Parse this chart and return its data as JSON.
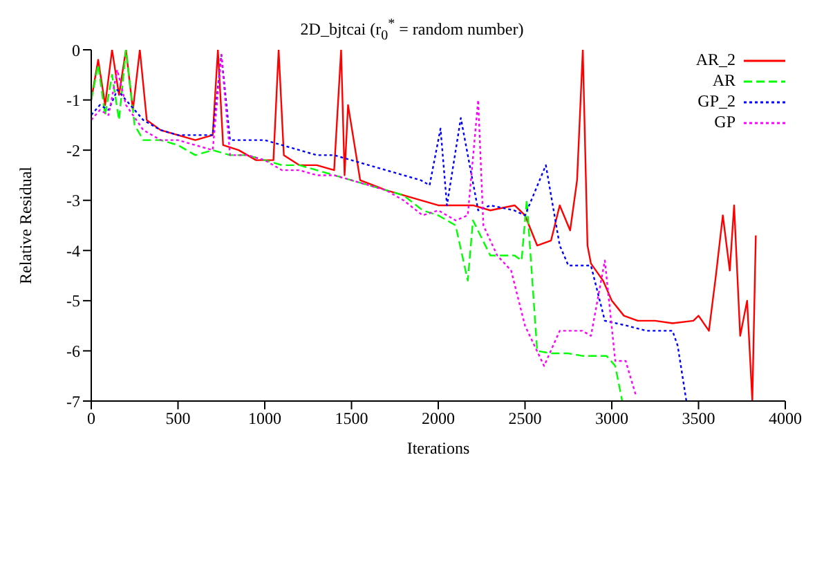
{
  "chart_data": {
    "type": "line",
    "title": "2D_bjtcai (r$_{0}$$^{*}$ = random number)",
    "xlabel": "Iterations",
    "ylabel": "Relative Residual",
    "xlim": [
      0,
      4000
    ],
    "ylim": [
      -7,
      0
    ],
    "xticks": [
      0,
      500,
      1000,
      1500,
      2000,
      2500,
      3000,
      3500,
      4000
    ],
    "yticks": [
      -7,
      -6,
      -5,
      -4,
      -3,
      -2,
      -1,
      0
    ],
    "legend": "top right",
    "marker": "none",
    "series": [
      {
        "name": "AR_2",
        "color": "#ff0000",
        "line_style": "solid",
        "x": [
          0,
          40,
          80,
          120,
          160,
          200,
          240,
          280,
          320,
          400,
          500,
          600,
          700,
          730,
          760,
          850,
          950,
          1050,
          1080,
          1110,
          1200,
          1300,
          1400,
          1440,
          1460,
          1480,
          1550,
          1700,
          1800,
          1900,
          2000,
          2100,
          2200,
          2300,
          2440,
          2500,
          2570,
          2650,
          2700,
          2760,
          2800,
          2833,
          2860,
          2880,
          2950,
          3000,
          3070,
          3150,
          3250,
          3350,
          3470,
          3500,
          3560,
          3600,
          3640,
          3680,
          3705,
          3740,
          3780,
          3810,
          3830
        ],
        "values": [
          -1.0,
          -0.2,
          -1.1,
          0,
          -0.9,
          0,
          -1.2,
          0,
          -1.4,
          -1.6,
          -1.7,
          -1.8,
          -1.7,
          0,
          -1.9,
          -2.0,
          -2.2,
          -2.2,
          0,
          -2.1,
          -2.3,
          -2.3,
          -2.4,
          0,
          -2.5,
          -1.1,
          -2.6,
          -2.8,
          -2.9,
          -3.0,
          -3.1,
          -3.1,
          -3.1,
          -3.2,
          -3.1,
          -3.3,
          -3.9,
          -3.8,
          -3.1,
          -3.6,
          -2.6,
          0,
          -3.9,
          -4.26,
          -4.6,
          -5.0,
          -5.3,
          -5.4,
          -5.4,
          -5.45,
          -5.4,
          -5.3,
          -5.6,
          -4.5,
          -3.3,
          -4.4,
          -3.1,
          -5.7,
          -5.0,
          -7,
          -3.7
        ]
      },
      {
        "name": "AR",
        "color": "#00ff00",
        "line_style": "dashed",
        "x": [
          0,
          40,
          80,
          120,
          160,
          200,
          250,
          300,
          400,
          500,
          600,
          700,
          800,
          900,
          1000,
          1100,
          1200,
          1300,
          1400,
          1500,
          1600,
          1700,
          1800,
          1910,
          2000,
          2100,
          2170,
          2200,
          2300,
          2440,
          2480,
          2510,
          2570,
          2650,
          2750,
          2830,
          2900,
          2970,
          3020,
          3060
        ],
        "values": [
          -1.0,
          -0.3,
          -1.3,
          -0.5,
          -1.4,
          0,
          -1.5,
          -1.8,
          -1.8,
          -1.9,
          -2.1,
          -2.0,
          -2.1,
          -2.1,
          -2.2,
          -2.3,
          -2.3,
          -2.4,
          -2.5,
          -2.6,
          -2.7,
          -2.8,
          -2.9,
          -3.2,
          -3.3,
          -3.5,
          -4.6,
          -3.4,
          -4.1,
          -4.1,
          -4.2,
          -3.0,
          -6.0,
          -6.05,
          -6.05,
          -6.1,
          -6.1,
          -6.1,
          -6.3,
          -7
        ]
      },
      {
        "name": "GP_2",
        "color": "#0000ff",
        "line_style": "dotted",
        "x": [
          0,
          50,
          100,
          150,
          200,
          300,
          400,
          500,
          600,
          700,
          750,
          800,
          900,
          1000,
          1100,
          1200,
          1300,
          1400,
          1500,
          1600,
          1700,
          1800,
          1900,
          1950,
          2013,
          2050,
          2130,
          2230,
          2300,
          2437,
          2500,
          2620,
          2700,
          2750,
          2880,
          2960,
          3090,
          3200,
          3350,
          3380,
          3430
        ],
        "values": [
          -1.3,
          -1.1,
          -1.2,
          -0.8,
          -1.0,
          -1.4,
          -1.6,
          -1.7,
          -1.7,
          -1.7,
          -0.1,
          -1.8,
          -1.8,
          -1.8,
          -1.9,
          -2.0,
          -2.1,
          -2.1,
          -2.2,
          -2.3,
          -2.4,
          -2.5,
          -2.6,
          -2.7,
          -1.57,
          -3.1,
          -1.36,
          -3.2,
          -3.1,
          -3.2,
          -3.3,
          -2.3,
          -3.9,
          -4.3,
          -4.3,
          -5.4,
          -5.5,
          -5.6,
          -5.6,
          -5.9,
          -7
        ]
      },
      {
        "name": "GP",
        "color": "#ff00ff",
        "line_style": "dotted",
        "x": [
          0,
          50,
          100,
          150,
          200,
          300,
          400,
          500,
          600,
          700,
          750,
          800,
          900,
          1000,
          1100,
          1200,
          1300,
          1400,
          1500,
          1600,
          1700,
          1800,
          1910,
          2000,
          2100,
          2170,
          2230,
          2260,
          2340,
          2420,
          2500,
          2610,
          2700,
          2830,
          2880,
          2960,
          3020,
          3080,
          3140
        ],
        "values": [
          -1.4,
          -1.2,
          -1.3,
          -0.4,
          -1.1,
          -1.6,
          -1.8,
          -1.8,
          -1.9,
          -2.0,
          -0.1,
          -2.1,
          -2.1,
          -2.2,
          -2.4,
          -2.4,
          -2.5,
          -2.5,
          -2.6,
          -2.7,
          -2.8,
          -3.0,
          -3.3,
          -3.2,
          -3.4,
          -3.3,
          -1.0,
          -3.5,
          -4.1,
          -4.4,
          -5.5,
          -6.3,
          -5.6,
          -5.6,
          -5.7,
          -4.2,
          -6.2,
          -6.2,
          -6.9
        ]
      }
    ]
  }
}
